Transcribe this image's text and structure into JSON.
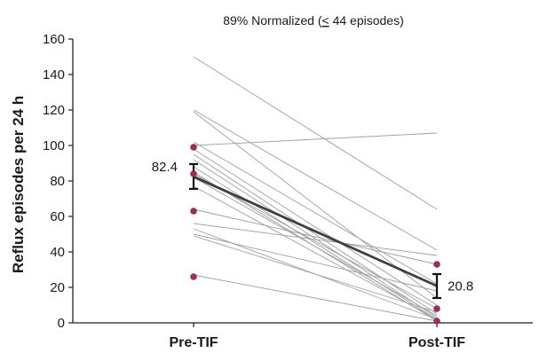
{
  "chart_data": {
    "type": "line",
    "title": {
      "before": "89% Normalized (",
      "symbol": "<",
      "after": " 44 episodes)"
    },
    "xlabel": "",
    "ylabel": "Reflux episodes per 24 h",
    "categories": [
      "Pre-TIF",
      "Post-TIF"
    ],
    "ylim": [
      0,
      160
    ],
    "yticks": [
      "0",
      "20",
      "40",
      "60",
      "80",
      "100",
      "120",
      "140",
      "160"
    ],
    "grid": false,
    "patient_lines": [
      {
        "pre": 150,
        "post": 64
      },
      {
        "pre": 120,
        "post": 41
      },
      {
        "pre": 119,
        "post": 14
      },
      {
        "pre": 102,
        "post": 22
      },
      {
        "pre": 100,
        "post": 107
      },
      {
        "pre": 98,
        "post": 10
      },
      {
        "pre": 95,
        "post": 5
      },
      {
        "pre": 92,
        "post": 3
      },
      {
        "pre": 88,
        "post": 2
      },
      {
        "pre": 85,
        "post": 1
      },
      {
        "pre": 84,
        "post": 8
      },
      {
        "pre": 82,
        "post": 4
      },
      {
        "pre": 77,
        "post": 2
      },
      {
        "pre": 64,
        "post": 33
      },
      {
        "pre": 56,
        "post": 38
      },
      {
        "pre": 53,
        "post": 2
      },
      {
        "pre": 50,
        "post": 18
      },
      {
        "pre": 49,
        "post": 6
      },
      {
        "pre": 27,
        "post": 1
      }
    ],
    "highlighted_points": {
      "pre": [
        99,
        84,
        63,
        26
      ],
      "post": [
        33,
        8,
        1
      ]
    },
    "mean_line": {
      "pre": 82.4,
      "post": 20.8
    },
    "mean_labels": {
      "pre": "82.4",
      "post": "20.8"
    },
    "error_bars": {
      "pre": {
        "low": 75.5,
        "high": 89.5
      },
      "post": {
        "low": 14,
        "high": 27.5
      }
    },
    "colors": {
      "patient_line": "#9e9e9e",
      "mean_line": "#3f3f3f",
      "error_bar": "#111111",
      "highlight_point": "#9c2b5e",
      "axis": "#222222"
    }
  }
}
